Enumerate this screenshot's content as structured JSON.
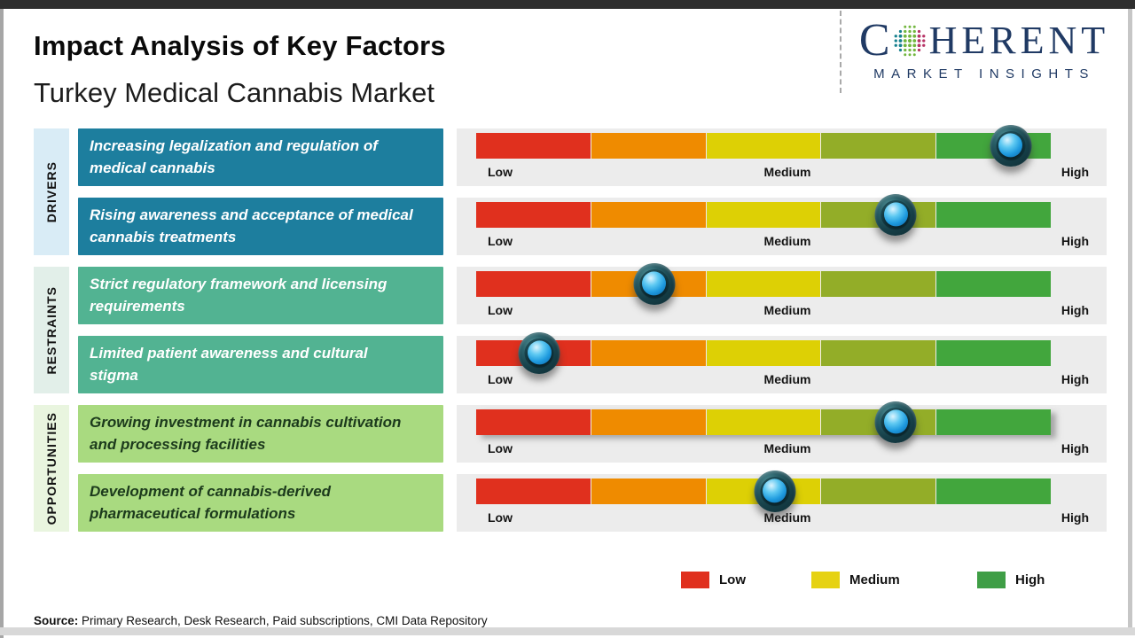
{
  "header": {
    "title": "Impact Analysis of Key Factors",
    "subtitle": "Turkey Medical Cannabis Market",
    "logo": {
      "brand_c": "C",
      "brand_rest": "HERENT",
      "tagline": "MARKET INSIGHTS",
      "brand_color": "#203a64"
    }
  },
  "categories": [
    {
      "label": "DRIVERS",
      "bg": "#d9ecf6"
    },
    {
      "label": "RESTRAINTS",
      "bg": "#e2efe9"
    },
    {
      "label": "OPPORTUNITIES",
      "bg": "#e9f5df"
    }
  ],
  "rows": [
    {
      "group": "Drivers",
      "factor": "Increasing legalization and regulation of medical cannabis",
      "impact_percent": 93,
      "impact_level": "High"
    },
    {
      "group": "Drivers",
      "factor": "Rising awareness and acceptance of medical cannabis treatments",
      "impact_percent": 73,
      "impact_level": "Medium-High"
    },
    {
      "group": "Restraints",
      "factor": "Strict regulatory framework and licensing requirements",
      "impact_percent": 31,
      "impact_level": "Low-Medium"
    },
    {
      "group": "Restraints",
      "factor": "Limited patient awareness and cultural stigma",
      "impact_percent": 11,
      "impact_level": "Low"
    },
    {
      "group": "Opportunities",
      "factor": "Growing investment in cannabis cultivation and processing facilities",
      "impact_percent": 73,
      "impact_level": "Medium-High"
    },
    {
      "group": "Opportunities",
      "factor": "Development of cannabis-derived pharmaceutical formulations",
      "impact_percent": 52,
      "impact_level": "Medium"
    }
  ],
  "scale": {
    "labels": [
      "Low",
      "Medium",
      "High"
    ],
    "segment_colors": [
      "#e0301e",
      "#ef8b00",
      "#ddd005",
      "#93ad28",
      "#42a63d"
    ]
  },
  "legend": [
    {
      "label": "Low",
      "color": "#e0301e"
    },
    {
      "label": "Medium",
      "color": "#e6d213"
    },
    {
      "label": "High",
      "color": "#3f9e46"
    }
  ],
  "source": {
    "label": "Source:",
    "text": " Primary Research, Desk Research, Paid subscriptions, CMI Data Repository"
  },
  "chart_data": {
    "type": "scatter",
    "title": "Impact Analysis of Key Factors",
    "subtitle": "Turkey Medical Cannabis Market",
    "x_axis": {
      "labels": [
        "Low",
        "Medium",
        "High"
      ],
      "range_percent": [
        0,
        100
      ]
    },
    "categories": [
      "Increasing legalization and regulation of medical cannabis",
      "Rising awareness and acceptance of medical cannabis treatments",
      "Strict regulatory framework and licensing requirements",
      "Limited patient awareness and cultural stigma",
      "Growing investment in cannabis cultivation and processing facilities",
      "Development of cannabis-derived pharmaceutical formulations"
    ],
    "category_groups": [
      "Drivers",
      "Drivers",
      "Restraints",
      "Restraints",
      "Opportunities",
      "Opportunities"
    ],
    "series": [
      {
        "name": "Impact position (% of Low-to-High scale)",
        "values": [
          93,
          73,
          31,
          11,
          73,
          52
        ]
      }
    ],
    "impact_levels": [
      "High",
      "Medium-High",
      "Low-Medium",
      "Low",
      "Medium-High",
      "Medium"
    ],
    "scale_segment_colors": [
      "#e0301e",
      "#ef8b00",
      "#ddd005",
      "#93ad28",
      "#42a63d"
    ],
    "legend_entries": [
      "Low",
      "Medium",
      "High"
    ],
    "legend_position": "bottom",
    "grid": false
  }
}
